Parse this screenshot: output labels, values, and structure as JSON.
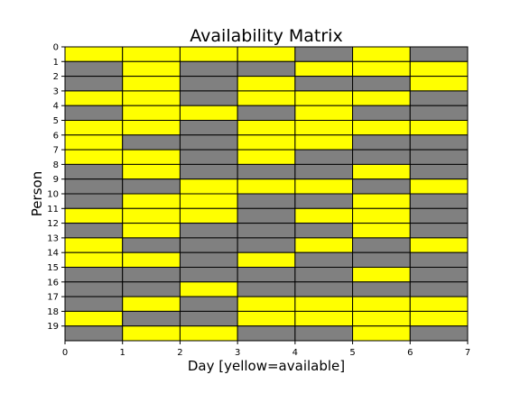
{
  "chart_data": {
    "type": "heatmap",
    "title": "Availability Matrix",
    "xlabel": "Day [yellow=available]",
    "ylabel": "Person",
    "xlim": [
      0,
      7
    ],
    "ylim": [
      0,
      20
    ],
    "y_axis_inverted": true,
    "grid": false,
    "x_ticks": [
      "0",
      "1",
      "2",
      "3",
      "4",
      "5",
      "6",
      "7"
    ],
    "y_ticks": [
      "0",
      "1",
      "2",
      "3",
      "4",
      "5",
      "6",
      "7",
      "8",
      "9",
      "10",
      "11",
      "12",
      "13",
      "14",
      "15",
      "16",
      "17",
      "18",
      "19"
    ],
    "colors": {
      "available": "#ffff00",
      "unavailable": "#808080",
      "cell_border": "#000000"
    },
    "value_legend": {
      "1": "available",
      "0": "unavailable"
    },
    "matrix": [
      [
        1,
        1,
        1,
        1,
        0,
        1,
        0
      ],
      [
        0,
        1,
        0,
        0,
        1,
        1,
        1
      ],
      [
        0,
        1,
        0,
        1,
        0,
        0,
        1
      ],
      [
        1,
        1,
        0,
        1,
        1,
        1,
        0
      ],
      [
        0,
        1,
        1,
        0,
        1,
        0,
        0
      ],
      [
        1,
        1,
        0,
        1,
        1,
        1,
        1
      ],
      [
        1,
        0,
        0,
        1,
        1,
        0,
        0
      ],
      [
        1,
        1,
        0,
        1,
        0,
        0,
        0
      ],
      [
        0,
        1,
        0,
        0,
        0,
        1,
        0
      ],
      [
        0,
        0,
        1,
        1,
        1,
        0,
        1
      ],
      [
        0,
        1,
        1,
        0,
        0,
        1,
        0
      ],
      [
        1,
        1,
        1,
        0,
        1,
        1,
        0
      ],
      [
        0,
        1,
        0,
        0,
        0,
        1,
        0
      ],
      [
        1,
        0,
        0,
        0,
        1,
        0,
        1
      ],
      [
        1,
        1,
        0,
        1,
        0,
        0,
        0
      ],
      [
        0,
        0,
        0,
        0,
        0,
        1,
        0
      ],
      [
        0,
        0,
        1,
        0,
        0,
        0,
        0
      ],
      [
        0,
        1,
        0,
        1,
        1,
        1,
        1
      ],
      [
        1,
        0,
        0,
        1,
        1,
        1,
        1
      ],
      [
        0,
        1,
        1,
        0,
        0,
        1,
        0
      ]
    ]
  }
}
